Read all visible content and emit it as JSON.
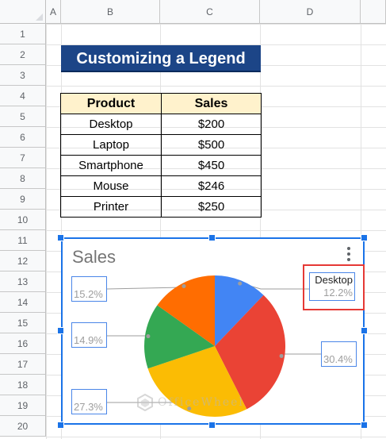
{
  "columns": [
    "A",
    "B",
    "C",
    "D"
  ],
  "rows": [
    "1",
    "2",
    "3",
    "4",
    "5",
    "6",
    "7",
    "8",
    "9",
    "10",
    "11",
    "12",
    "13",
    "14",
    "15",
    "16",
    "17",
    "18",
    "19",
    "20"
  ],
  "title": "Customizing a Legend",
  "table": {
    "headers": [
      "Product",
      "Sales"
    ],
    "rows": [
      [
        "Desktop",
        "$200"
      ],
      [
        "Laptop",
        "$500"
      ],
      [
        "Smartphone",
        "$450"
      ],
      [
        "Mouse",
        "$246"
      ],
      [
        "Printer",
        "$250"
      ]
    ]
  },
  "chart": {
    "title": "Sales",
    "menu_icon": "vertical-dots-icon",
    "labels": {
      "desktop_name": "Desktop",
      "desktop_pct": "12.2%",
      "printer_pct": "15.2%",
      "mouse_pct": "14.9%",
      "smartphone_pct": "27.3%",
      "laptop_pct": "30.4%"
    }
  },
  "chart_data": {
    "type": "pie",
    "title": "Sales",
    "categories": [
      "Desktop",
      "Laptop",
      "Smartphone",
      "Mouse",
      "Printer"
    ],
    "values": [
      200,
      500,
      450,
      246,
      250
    ],
    "percents": [
      12.2,
      30.4,
      27.3,
      14.9,
      15.2
    ],
    "colors": [
      "#4285f4",
      "#ea4335",
      "#fbbc04",
      "#34a853",
      "#ff6d01"
    ]
  },
  "colors": {
    "title_bg": "#1c4587",
    "header_bg": "#fff2cc",
    "selection": "#1a73e8",
    "highlight": "#e53935"
  },
  "watermark": "OfficeWheel"
}
